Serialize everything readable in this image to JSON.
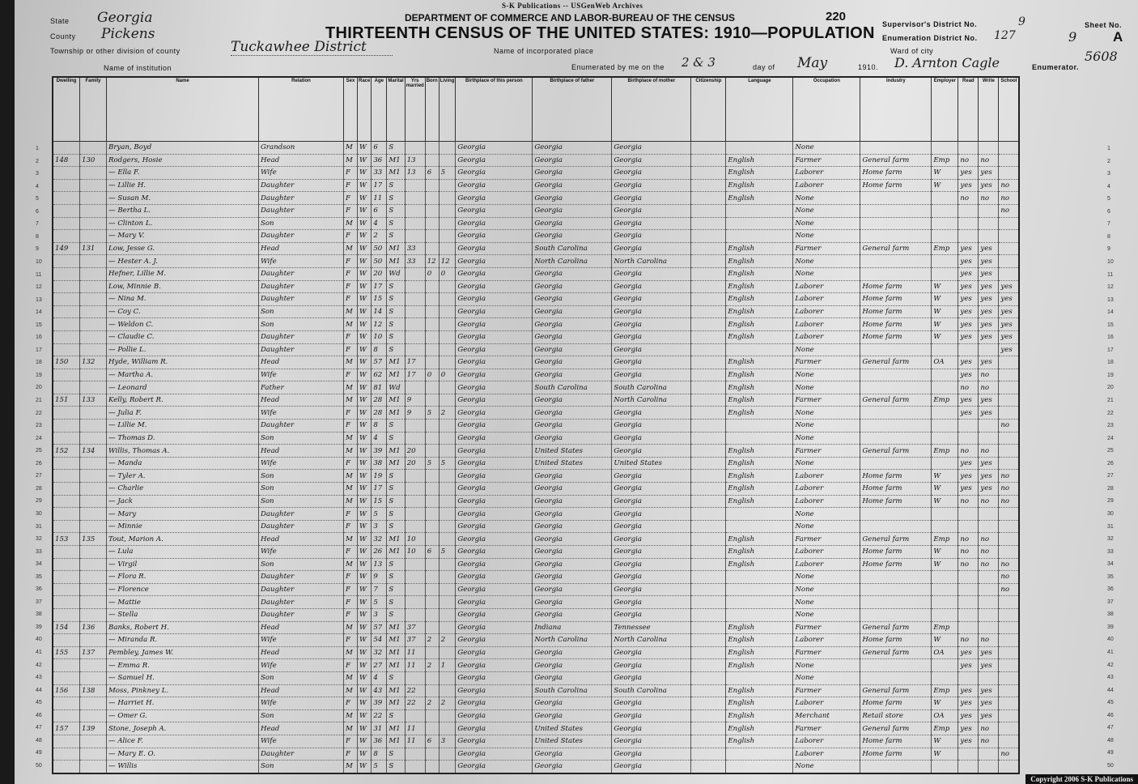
{
  "banner": "S-K Publications -- USGenWeb Archives",
  "department": "DEPARTMENT OF COMMERCE AND LABOR-BUREAU OF THE CENSUS",
  "title": "THIRTEENTH CENSUS OF THE UNITED STATES: 1910—POPULATION",
  "page_number": "220",
  "stamp_number": "5608",
  "state": {
    "label": "State",
    "value": "Georgia"
  },
  "county": {
    "label": "County",
    "value": "Pickens"
  },
  "township": {
    "label": "Township or other division of county",
    "value": "Tuckawhee District"
  },
  "institution": {
    "label": "Name of institution"
  },
  "incorporated_place": {
    "label": "Name of incorporated place"
  },
  "ward": {
    "label": "Ward of city"
  },
  "supervisor_district": {
    "label": "Supervisor's District No.",
    "value": "9"
  },
  "enumeration_district": {
    "label": "Enumeration District No.",
    "value": "127"
  },
  "sheet": {
    "label": "Sheet No.",
    "value": "9",
    "side": "A"
  },
  "enumerated": {
    "prefix": "Enumerated by me on the",
    "day": "2 & 3",
    "day_of": "day of",
    "month": "May",
    "year": "1910.",
    "enumerator": "D. Arnton Cagle",
    "suffix": "Enumerator."
  },
  "columns": [
    "Dwelling",
    "Family",
    "Name",
    "Relation",
    "Sex",
    "Race",
    "Age",
    "Marital",
    "Yrs married",
    "Born",
    "Living",
    "Birthplace of this person",
    "Birthplace of father",
    "Birthplace of mother",
    "Citizenship",
    "Language",
    "Occupation",
    "Industry",
    "Employer",
    "Read",
    "Write",
    "School"
  ],
  "rows": [
    [
      "",
      "",
      "Bryan, Boyd",
      "Grandson",
      "M",
      "W",
      "6",
      "S",
      "",
      "",
      "",
      "Georgia",
      "Georgia",
      "Georgia",
      "",
      "",
      "None",
      "",
      "",
      "",
      "",
      ""
    ],
    [
      "148",
      "130",
      "Rodgers, Hosie",
      "Head",
      "M",
      "W",
      "36",
      "M1",
      "13",
      "",
      "",
      "Georgia",
      "Georgia",
      "Georgia",
      "",
      "English",
      "Farmer",
      "General farm",
      "Emp",
      "no",
      "no",
      ""
    ],
    [
      "",
      "",
      "— Ella F.",
      "Wife",
      "F",
      "W",
      "33",
      "M1",
      "13",
      "6",
      "5",
      "Georgia",
      "Georgia",
      "Georgia",
      "",
      "English",
      "Laborer",
      "Home farm",
      "W",
      "yes",
      "yes",
      ""
    ],
    [
      "",
      "",
      "— Lillie H.",
      "Daughter",
      "F",
      "W",
      "17",
      "S",
      "",
      "",
      "",
      "Georgia",
      "Georgia",
      "Georgia",
      "",
      "English",
      "Laborer",
      "Home farm",
      "W",
      "yes",
      "yes",
      "no"
    ],
    [
      "",
      "",
      "— Susan M.",
      "Daughter",
      "F",
      "W",
      "11",
      "S",
      "",
      "",
      "",
      "Georgia",
      "Georgia",
      "Georgia",
      "",
      "English",
      "None",
      "",
      "",
      "no",
      "no",
      "no"
    ],
    [
      "",
      "",
      "— Bertha L.",
      "Daughter",
      "F",
      "W",
      "6",
      "S",
      "",
      "",
      "",
      "Georgia",
      "Georgia",
      "Georgia",
      "",
      "",
      "None",
      "",
      "",
      "",
      "",
      "no"
    ],
    [
      "",
      "",
      "— Clinton L.",
      "Son",
      "M",
      "W",
      "4",
      "S",
      "",
      "",
      "",
      "Georgia",
      "Georgia",
      "Georgia",
      "",
      "",
      "None",
      "",
      "",
      "",
      "",
      ""
    ],
    [
      "",
      "",
      "— Mary V.",
      "Daughter",
      "F",
      "W",
      "2",
      "S",
      "",
      "",
      "",
      "Georgia",
      "Georgia",
      "Georgia",
      "",
      "",
      "None",
      "",
      "",
      "",
      "",
      ""
    ],
    [
      "149",
      "131",
      "Low, Jesse G.",
      "Head",
      "M",
      "W",
      "50",
      "M1",
      "33",
      "",
      "",
      "Georgia",
      "South Carolina",
      "Georgia",
      "",
      "English",
      "Farmer",
      "General farm",
      "Emp",
      "yes",
      "yes",
      ""
    ],
    [
      "",
      "",
      "— Hester A. J.",
      "Wife",
      "F",
      "W",
      "50",
      "M1",
      "33",
      "12",
      "12",
      "Georgia",
      "North Carolina",
      "North Carolina",
      "",
      "English",
      "None",
      "",
      "",
      "yes",
      "yes",
      ""
    ],
    [
      "",
      "",
      "Hefner, Lillie M.",
      "Daughter",
      "F",
      "W",
      "20",
      "Wd",
      "",
      "0",
      "0",
      "Georgia",
      "Georgia",
      "Georgia",
      "",
      "English",
      "None",
      "",
      "",
      "yes",
      "yes",
      ""
    ],
    [
      "",
      "",
      "Low, Minnie B.",
      "Daughter",
      "F",
      "W",
      "17",
      "S",
      "",
      "",
      "",
      "Georgia",
      "Georgia",
      "Georgia",
      "",
      "English",
      "Laborer",
      "Home farm",
      "W",
      "yes",
      "yes",
      "yes"
    ],
    [
      "",
      "",
      "— Nina M.",
      "Daughter",
      "F",
      "W",
      "15",
      "S",
      "",
      "",
      "",
      "Georgia",
      "Georgia",
      "Georgia",
      "",
      "English",
      "Laborer",
      "Home farm",
      "W",
      "yes",
      "yes",
      "yes"
    ],
    [
      "",
      "",
      "— Coy C.",
      "Son",
      "M",
      "W",
      "14",
      "S",
      "",
      "",
      "",
      "Georgia",
      "Georgia",
      "Georgia",
      "",
      "English",
      "Laborer",
      "Home farm",
      "W",
      "yes",
      "yes",
      "yes"
    ],
    [
      "",
      "",
      "— Weldon C.",
      "Son",
      "M",
      "W",
      "12",
      "S",
      "",
      "",
      "",
      "Georgia",
      "Georgia",
      "Georgia",
      "",
      "English",
      "Laborer",
      "Home farm",
      "W",
      "yes",
      "yes",
      "yes"
    ],
    [
      "",
      "",
      "— Claudie C.",
      "Daughter",
      "F",
      "W",
      "10",
      "S",
      "",
      "",
      "",
      "Georgia",
      "Georgia",
      "Georgia",
      "",
      "English",
      "Laborer",
      "Home farm",
      "W",
      "yes",
      "yes",
      "yes"
    ],
    [
      "",
      "",
      "— Pollie L.",
      "Daughter",
      "F",
      "W",
      "8",
      "S",
      "",
      "",
      "",
      "Georgia",
      "Georgia",
      "Georgia",
      "",
      "",
      "None",
      "",
      "",
      "",
      "",
      "yes"
    ],
    [
      "150",
      "132",
      "Hyde, William R.",
      "Head",
      "M",
      "W",
      "57",
      "M1",
      "17",
      "",
      "",
      "Georgia",
      "Georgia",
      "Georgia",
      "",
      "English",
      "Farmer",
      "General farm",
      "OA",
      "yes",
      "yes",
      ""
    ],
    [
      "",
      "",
      "— Martha A.",
      "Wife",
      "F",
      "W",
      "62",
      "M1",
      "17",
      "0",
      "0",
      "Georgia",
      "Georgia",
      "Georgia",
      "",
      "English",
      "None",
      "",
      "",
      "yes",
      "no",
      ""
    ],
    [
      "",
      "",
      "— Leonard",
      "Father",
      "M",
      "W",
      "81",
      "Wd",
      "",
      "",
      "",
      "Georgia",
      "South Carolina",
      "South Carolina",
      "",
      "English",
      "None",
      "",
      "",
      "no",
      "no",
      ""
    ],
    [
      "151",
      "133",
      "Kelly, Robert R.",
      "Head",
      "M",
      "W",
      "28",
      "M1",
      "9",
      "",
      "",
      "Georgia",
      "Georgia",
      "North Carolina",
      "",
      "English",
      "Farmer",
      "General farm",
      "Emp",
      "yes",
      "yes",
      ""
    ],
    [
      "",
      "",
      "— Julia F.",
      "Wife",
      "F",
      "W",
      "28",
      "M1",
      "9",
      "5",
      "2",
      "Georgia",
      "Georgia",
      "Georgia",
      "",
      "English",
      "None",
      "",
      "",
      "yes",
      "yes",
      ""
    ],
    [
      "",
      "",
      "— Lillie M.",
      "Daughter",
      "F",
      "W",
      "8",
      "S",
      "",
      "",
      "",
      "Georgia",
      "Georgia",
      "Georgia",
      "",
      "",
      "None",
      "",
      "",
      "",
      "",
      "no"
    ],
    [
      "",
      "",
      "— Thomas D.",
      "Son",
      "M",
      "W",
      "4",
      "S",
      "",
      "",
      "",
      "Georgia",
      "Georgia",
      "Georgia",
      "",
      "",
      "None",
      "",
      "",
      "",
      "",
      ""
    ],
    [
      "152",
      "134",
      "Willis, Thomas A.",
      "Head",
      "M",
      "W",
      "39",
      "M1",
      "20",
      "",
      "",
      "Georgia",
      "United States",
      "Georgia",
      "",
      "English",
      "Farmer",
      "General farm",
      "Emp",
      "no",
      "no",
      ""
    ],
    [
      "",
      "",
      "— Manda",
      "Wife",
      "F",
      "W",
      "38",
      "M1",
      "20",
      "5",
      "5",
      "Georgia",
      "United States",
      "United States",
      "",
      "English",
      "None",
      "",
      "",
      "yes",
      "yes",
      ""
    ],
    [
      "",
      "",
      "— Tyler A.",
      "Son",
      "M",
      "W",
      "19",
      "S",
      "",
      "",
      "",
      "Georgia",
      "Georgia",
      "Georgia",
      "",
      "English",
      "Laborer",
      "Home farm",
      "W",
      "yes",
      "yes",
      "no"
    ],
    [
      "",
      "",
      "— Charlie",
      "Son",
      "M",
      "W",
      "17",
      "S",
      "",
      "",
      "",
      "Georgia",
      "Georgia",
      "Georgia",
      "",
      "English",
      "Laborer",
      "Home farm",
      "W",
      "yes",
      "yes",
      "no"
    ],
    [
      "",
      "",
      "— Jack",
      "Son",
      "M",
      "W",
      "15",
      "S",
      "",
      "",
      "",
      "Georgia",
      "Georgia",
      "Georgia",
      "",
      "English",
      "Laborer",
      "Home farm",
      "W",
      "no",
      "no",
      "no"
    ],
    [
      "",
      "",
      "— Mary",
      "Daughter",
      "F",
      "W",
      "5",
      "S",
      "",
      "",
      "",
      "Georgia",
      "Georgia",
      "Georgia",
      "",
      "",
      "None",
      "",
      "",
      "",
      "",
      ""
    ],
    [
      "",
      "",
      "— Minnie",
      "Daughter",
      "F",
      "W",
      "3",
      "S",
      "",
      "",
      "",
      "Georgia",
      "Georgia",
      "Georgia",
      "",
      "",
      "None",
      "",
      "",
      "",
      "",
      ""
    ],
    [
      "153",
      "135",
      "Tout, Marion A.",
      "Head",
      "M",
      "W",
      "32",
      "M1",
      "10",
      "",
      "",
      "Georgia",
      "Georgia",
      "Georgia",
      "",
      "English",
      "Farmer",
      "General farm",
      "Emp",
      "no",
      "no",
      ""
    ],
    [
      "",
      "",
      "— Lula",
      "Wife",
      "F",
      "W",
      "26",
      "M1",
      "10",
      "6",
      "5",
      "Georgia",
      "Georgia",
      "Georgia",
      "",
      "English",
      "Laborer",
      "Home farm",
      "W",
      "no",
      "no",
      ""
    ],
    [
      "",
      "",
      "— Virgil",
      "Son",
      "M",
      "W",
      "13",
      "S",
      "",
      "",
      "",
      "Georgia",
      "Georgia",
      "Georgia",
      "",
      "English",
      "Laborer",
      "Home farm",
      "W",
      "no",
      "no",
      "no"
    ],
    [
      "",
      "",
      "— Flora R.",
      "Daughter",
      "F",
      "W",
      "9",
      "S",
      "",
      "",
      "",
      "Georgia",
      "Georgia",
      "Georgia",
      "",
      "",
      "None",
      "",
      "",
      "",
      "",
      "no"
    ],
    [
      "",
      "",
      "— Florence",
      "Daughter",
      "F",
      "W",
      "7",
      "S",
      "",
      "",
      "",
      "Georgia",
      "Georgia",
      "Georgia",
      "",
      "",
      "None",
      "",
      "",
      "",
      "",
      "no"
    ],
    [
      "",
      "",
      "— Mattie",
      "Daughter",
      "F",
      "W",
      "5",
      "S",
      "",
      "",
      "",
      "Georgia",
      "Georgia",
      "Georgia",
      "",
      "",
      "None",
      "",
      "",
      "",
      "",
      ""
    ],
    [
      "",
      "",
      "— Stella",
      "Daughter",
      "F",
      "W",
      "3",
      "S",
      "",
      "",
      "",
      "Georgia",
      "Georgia",
      "Georgia",
      "",
      "",
      "None",
      "",
      "",
      "",
      "",
      ""
    ],
    [
      "154",
      "136",
      "Banks, Robert H.",
      "Head",
      "M",
      "W",
      "57",
      "M1",
      "37",
      "",
      "",
      "Georgia",
      "Indiana",
      "Tennessee",
      "",
      "English",
      "Farmer",
      "General farm",
      "Emp",
      "",
      "",
      ""
    ],
    [
      "",
      "",
      "— Miranda R.",
      "Wife",
      "F",
      "W",
      "54",
      "M1",
      "37",
      "2",
      "2",
      "Georgia",
      "North Carolina",
      "North Carolina",
      "",
      "English",
      "Laborer",
      "Home farm",
      "W",
      "no",
      "no",
      ""
    ],
    [
      "155",
      "137",
      "Pembley, James W.",
      "Head",
      "M",
      "W",
      "32",
      "M1",
      "11",
      "",
      "",
      "Georgia",
      "Georgia",
      "Georgia",
      "",
      "English",
      "Farmer",
      "General farm",
      "OA",
      "yes",
      "yes",
      ""
    ],
    [
      "",
      "",
      "— Emma R.",
      "Wife",
      "F",
      "W",
      "27",
      "M1",
      "11",
      "2",
      "1",
      "Georgia",
      "Georgia",
      "Georgia",
      "",
      "English",
      "None",
      "",
      "",
      "yes",
      "yes",
      ""
    ],
    [
      "",
      "",
      "— Samuel H.",
      "Son",
      "M",
      "W",
      "4",
      "S",
      "",
      "",
      "",
      "Georgia",
      "Georgia",
      "Georgia",
      "",
      "",
      "None",
      "",
      "",
      "",
      "",
      ""
    ],
    [
      "156",
      "138",
      "Moss, Pinkney L.",
      "Head",
      "M",
      "W",
      "43",
      "M1",
      "22",
      "",
      "",
      "Georgia",
      "South Carolina",
      "South Carolina",
      "",
      "English",
      "Farmer",
      "General farm",
      "Emp",
      "yes",
      "yes",
      ""
    ],
    [
      "",
      "",
      "— Harriet H.",
      "Wife",
      "F",
      "W",
      "39",
      "M1",
      "22",
      "2",
      "2",
      "Georgia",
      "Georgia",
      "Georgia",
      "",
      "English",
      "Laborer",
      "Home farm",
      "W",
      "yes",
      "yes",
      ""
    ],
    [
      "",
      "",
      "— Omer G.",
      "Son",
      "M",
      "W",
      "22",
      "S",
      "",
      "",
      "",
      "Georgia",
      "Georgia",
      "Georgia",
      "",
      "English",
      "Merchant",
      "Retail store",
      "OA",
      "yes",
      "yes",
      ""
    ],
    [
      "157",
      "139",
      "Stone, Joseph A.",
      "Head",
      "M",
      "W",
      "31",
      "M1",
      "11",
      "",
      "",
      "Georgia",
      "United States",
      "Georgia",
      "",
      "English",
      "Farmer",
      "General farm",
      "Emp",
      "yes",
      "no",
      ""
    ],
    [
      "",
      "",
      "— Alice F.",
      "Wife",
      "F",
      "W",
      "36",
      "M1",
      "11",
      "6",
      "3",
      "Georgia",
      "United States",
      "Georgia",
      "",
      "English",
      "Laborer",
      "Home farm",
      "W",
      "yes",
      "no",
      ""
    ],
    [
      "",
      "",
      "— Mary E. O.",
      "Daughter",
      "F",
      "W",
      "8",
      "S",
      "",
      "",
      "",
      "Georgia",
      "Georgia",
      "Georgia",
      "",
      "",
      "Laborer",
      "Home farm",
      "W",
      "",
      "",
      "no"
    ],
    [
      "",
      "",
      "— Willis",
      "Son",
      "M",
      "W",
      "5",
      "S",
      "",
      "",
      "",
      "Georgia",
      "Georgia",
      "Georgia",
      "",
      "",
      "None",
      "",
      "",
      "",
      "",
      ""
    ]
  ],
  "copyright": "Copyright 2006 S-K Publications"
}
